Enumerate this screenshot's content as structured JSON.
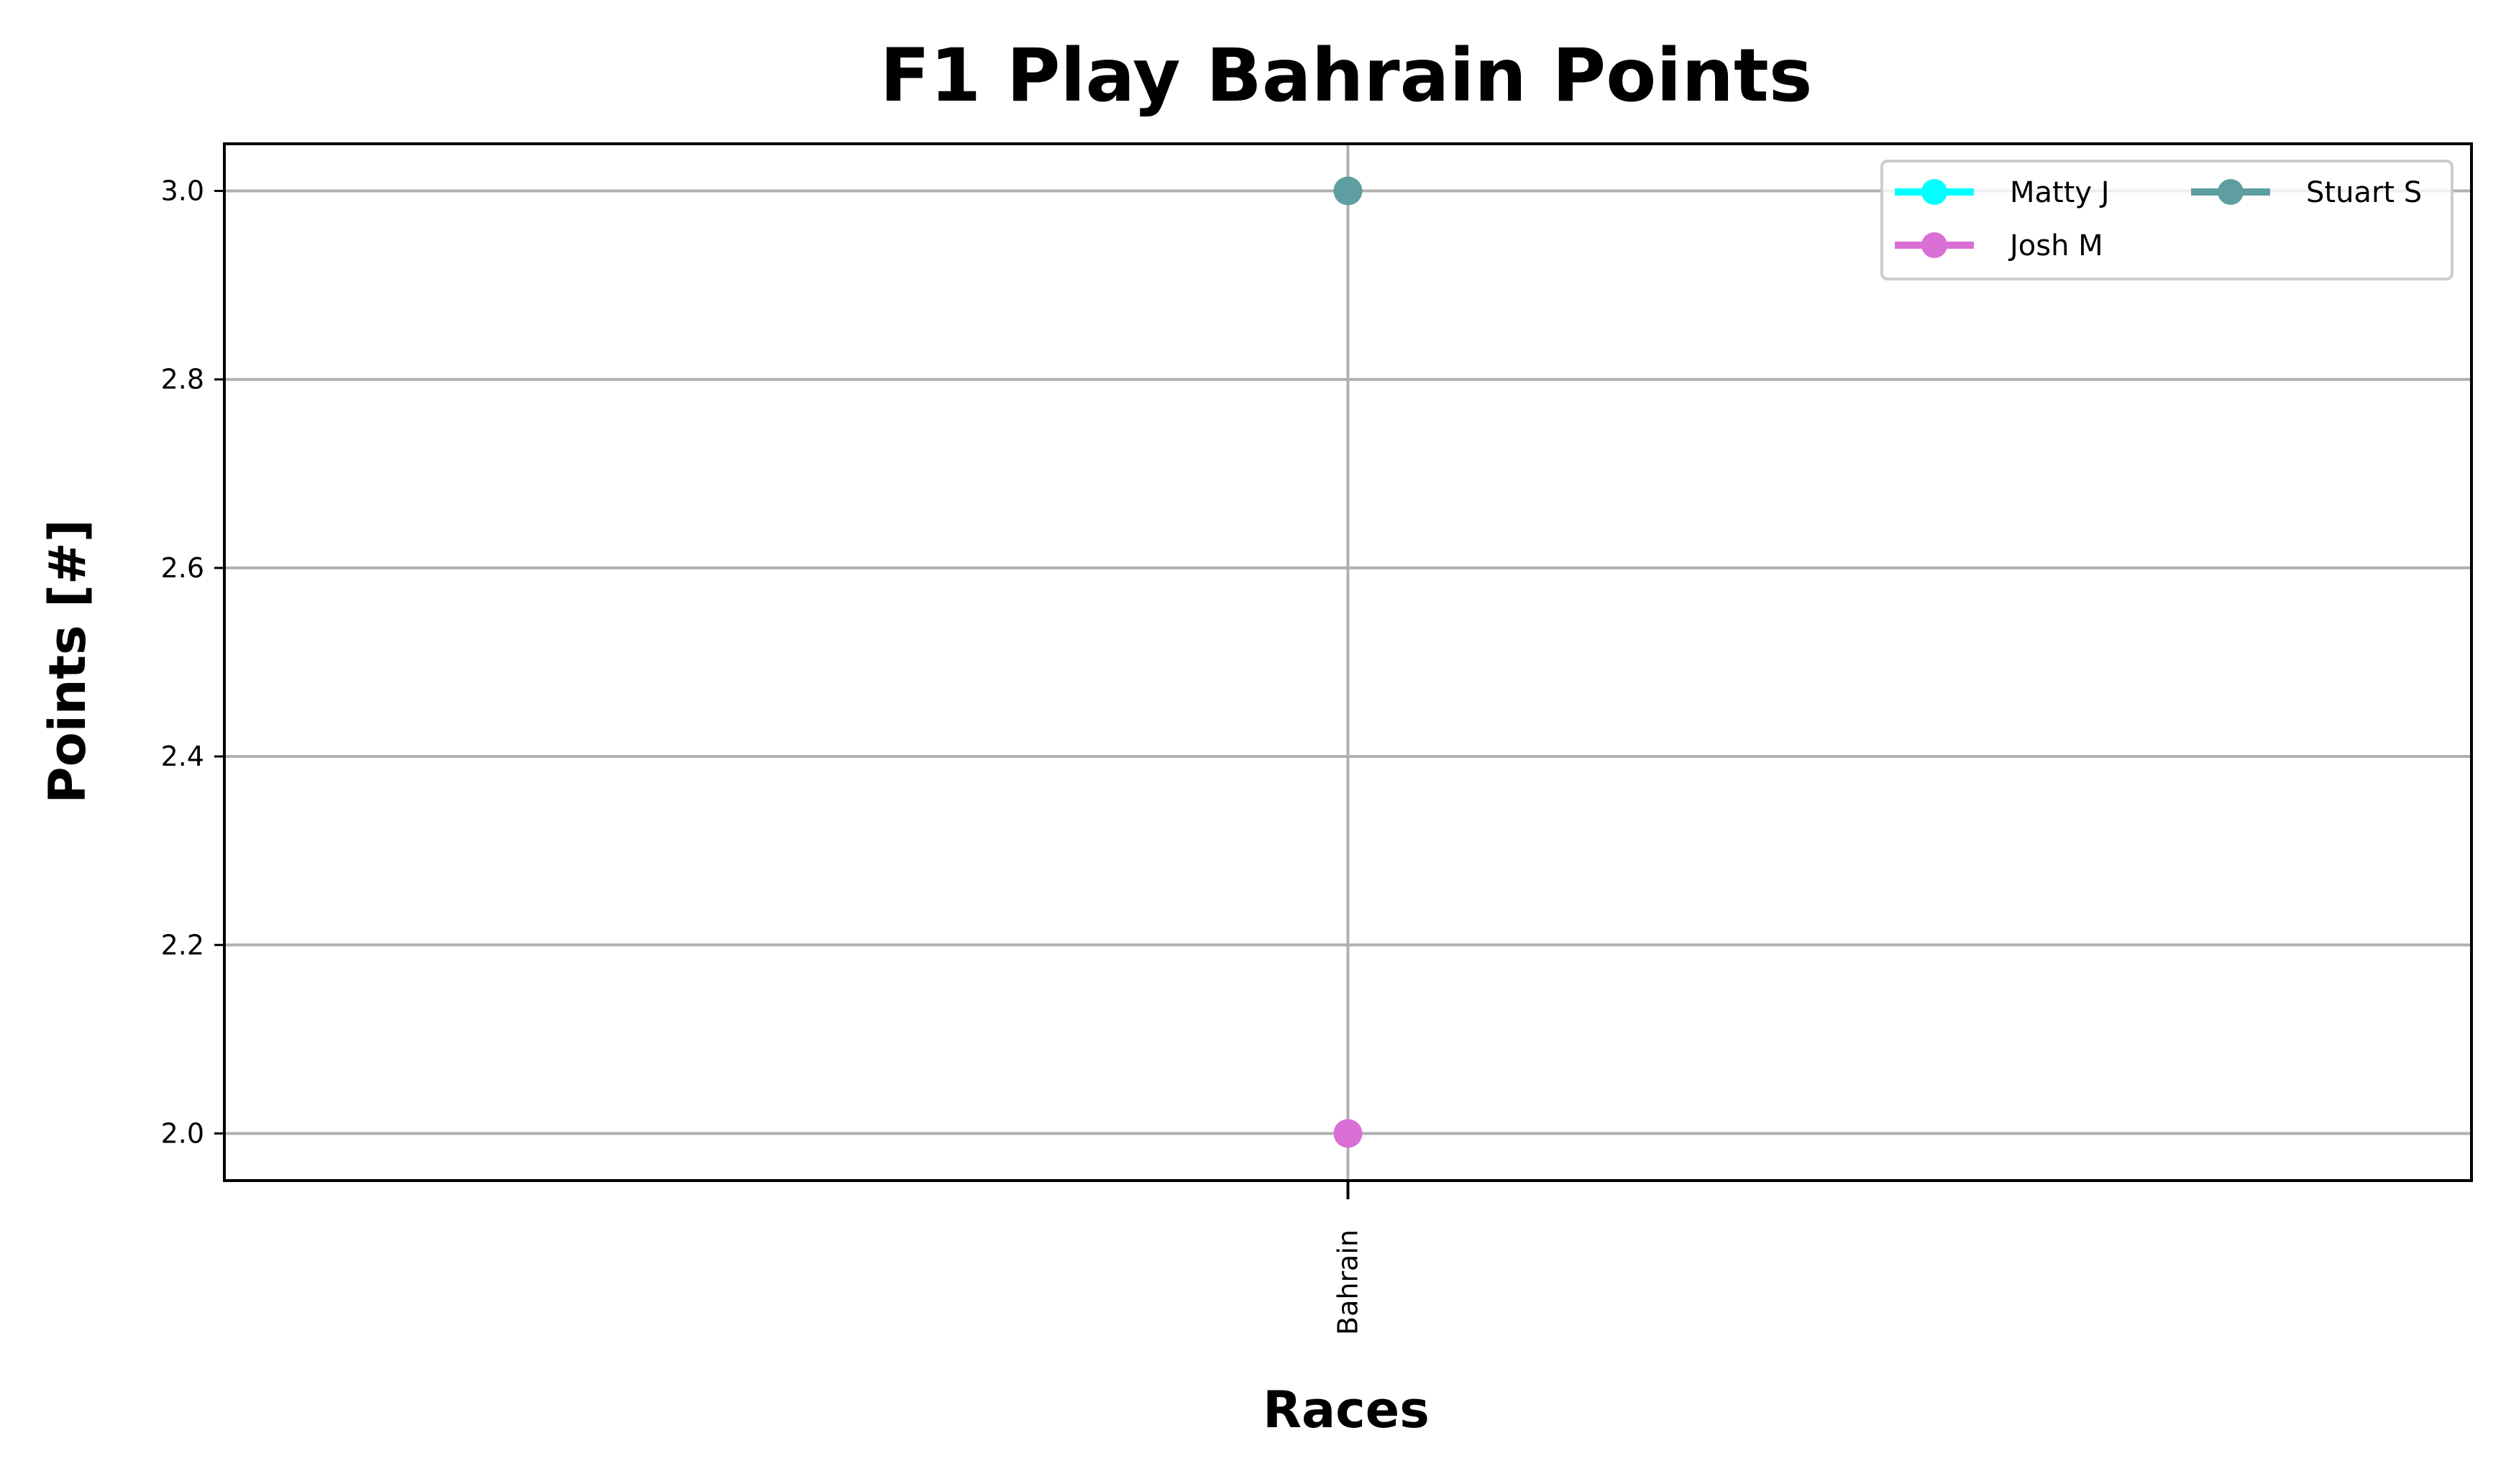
{
  "chart_data": {
    "type": "line",
    "title": "F1 Play Bahrain Points",
    "xlabel": "Races",
    "ylabel": "Points [#]",
    "categories": [
      "Bahrain"
    ],
    "ylim": [
      1.95,
      3.05
    ],
    "yticks": [
      2.0,
      2.2,
      2.4,
      2.6,
      2.8,
      3.0
    ],
    "ytick_labels": [
      "2.0",
      "2.2",
      "2.4",
      "2.6",
      "2.8",
      "3.0"
    ],
    "grid": true,
    "legend_position": "top-right",
    "legend_columns": 2,
    "series": [
      {
        "name": "Matty J",
        "color": "#00ffff",
        "values": [
          null
        ]
      },
      {
        "name": "Josh M",
        "color": "#da70d6",
        "values": [
          2
        ]
      },
      {
        "name": "Stuart S",
        "color": "#5f9ea0",
        "values": [
          3
        ]
      }
    ]
  }
}
